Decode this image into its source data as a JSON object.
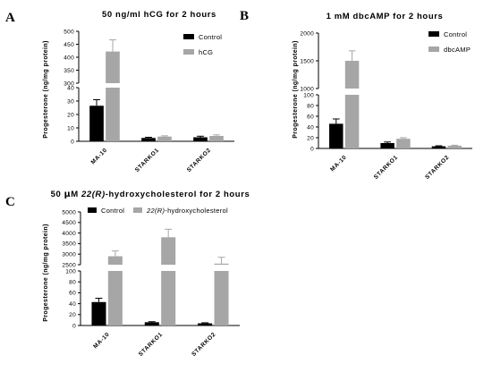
{
  "panels": {
    "A": {
      "letter": "A"
    },
    "B": {
      "letter": "B"
    },
    "C": {
      "letter": "C"
    }
  },
  "colors": {
    "control": "#000000",
    "treated": "#a6a6a6",
    "axis": "#000000"
  },
  "chart_data": [
    {
      "id": "A",
      "type": "bar",
      "title": "50 ng/ml hCG for 2 hours",
      "ylabel": "Progesterone (ng/mg protein)",
      "xlabel": "",
      "categories": [
        "MA-10",
        "STARKO1",
        "STARKO2"
      ],
      "series": [
        {
          "name": "Control",
          "values": [
            26.5,
            2.5,
            3.0
          ],
          "errors": [
            4.5,
            0.5,
            0.8
          ]
        },
        {
          "name": "hCG",
          "values": [
            422,
            3.5,
            4.0
          ],
          "errors": [
            45,
            0.6,
            0.8
          ]
        }
      ],
      "broken_axis": true,
      "ylim_lower": [
        0,
        40
      ],
      "yticks_lower": [
        0,
        10,
        20,
        30,
        40
      ],
      "ylim_upper": [
        300,
        500
      ],
      "yticks_upper": [
        300,
        350,
        400,
        450,
        500
      ],
      "legend_position": "top-right"
    },
    {
      "id": "B",
      "type": "bar",
      "title": "1 mM dbcAMP for 2 hours",
      "ylabel": "Progesterone (ng/mg protein)",
      "xlabel": "",
      "categories": [
        "MA-10",
        "STARKO1",
        "STARKO2"
      ],
      "series": [
        {
          "name": "Control",
          "values": [
            46,
            10,
            4
          ],
          "errors": [
            9,
            2,
            1
          ]
        },
        {
          "name": "dbcAMP",
          "values": [
            1500,
            18,
            5
          ],
          "errors": [
            180,
            2,
            1
          ]
        }
      ],
      "broken_axis": true,
      "ylim_lower": [
        0,
        100
      ],
      "yticks_lower": [
        0,
        20,
        40,
        60,
        80,
        100
      ],
      "ylim_upper": [
        1000,
        2000
      ],
      "yticks_upper": [
        1000,
        1500,
        2000
      ],
      "legend_position": "top-right"
    },
    {
      "id": "C",
      "type": "bar",
      "title": "50 μM 22(R)-hydroxycholesterol for 2 hours",
      "ylabel": "Progesterone (ng/mg protein)",
      "xlabel": "",
      "categories": [
        "MA-10",
        "STARKO1",
        "STARKO2"
      ],
      "series": [
        {
          "name": "Control",
          "values": [
            43,
            6,
            4
          ],
          "errors": [
            7,
            1,
            1
          ]
        },
        {
          "name": "22(R)-hydroxycholesterol",
          "values": [
            2900,
            3800,
            2550
          ],
          "errors": [
            250,
            380,
            300
          ]
        }
      ],
      "broken_axis": true,
      "ylim_lower": [
        0,
        100
      ],
      "yticks_lower": [
        0,
        20,
        40,
        60,
        80,
        100
      ],
      "ylim_upper": [
        2500,
        5000
      ],
      "yticks_upper": [
        2500,
        3000,
        3500,
        4000,
        4500,
        5000
      ],
      "legend_position": "top"
    }
  ]
}
